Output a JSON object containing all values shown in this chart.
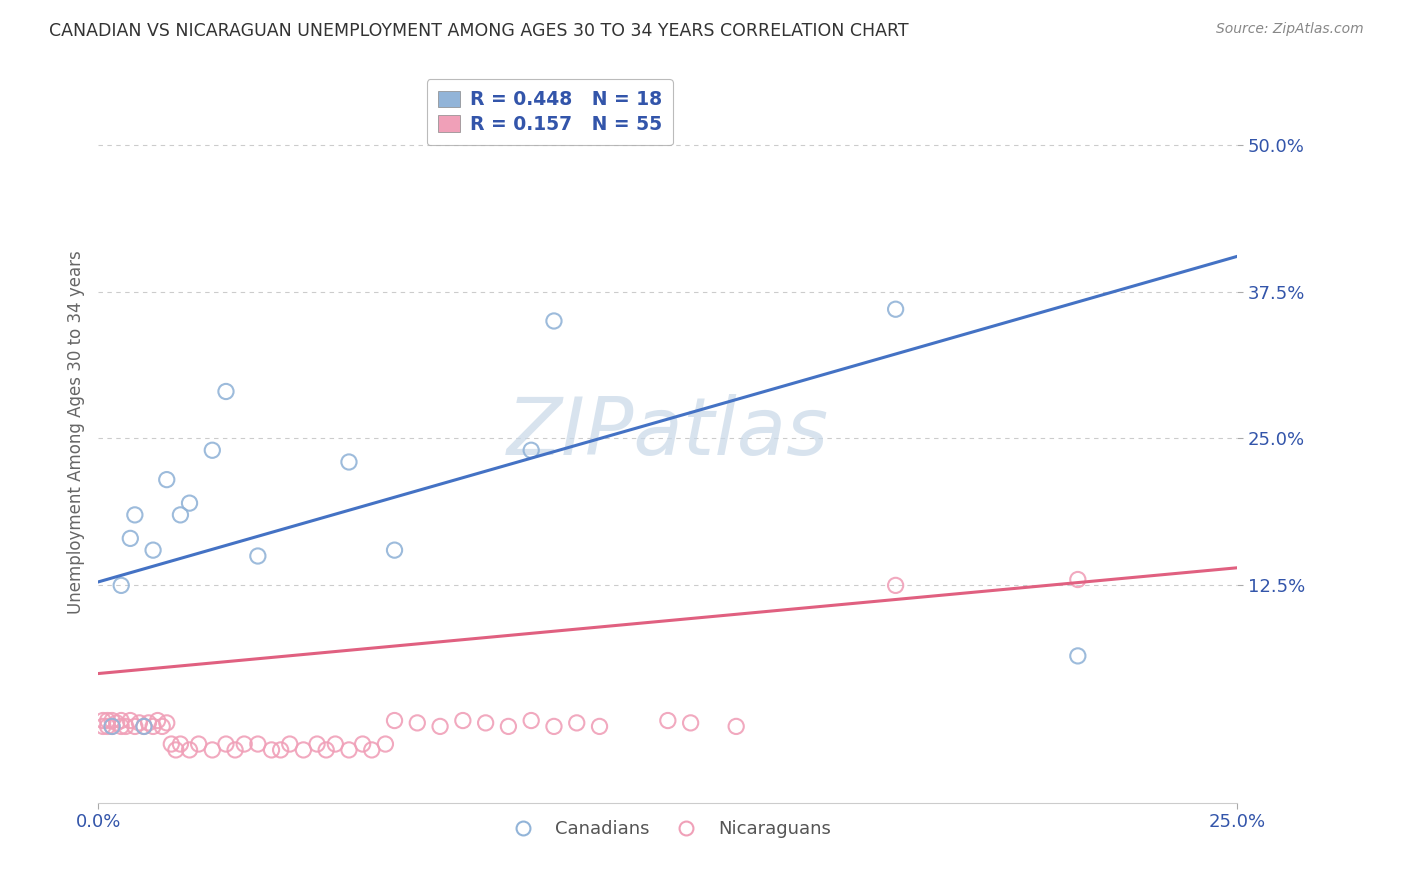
{
  "title": "CANADIAN VS NICARAGUAN UNEMPLOYMENT AMONG AGES 30 TO 34 YEARS CORRELATION CHART",
  "source": "Source: ZipAtlas.com",
  "ylabel": "Unemployment Among Ages 30 to 34 years",
  "ytick_labels": [
    "12.5%",
    "25.0%",
    "37.5%",
    "50.0%"
  ],
  "ytick_values": [
    0.125,
    0.25,
    0.375,
    0.5
  ],
  "xlim": [
    0.0,
    0.25
  ],
  "ylim": [
    -0.06,
    0.57
  ],
  "legend_r_canadian": "R = ",
  "legend_r_canadian_val": "0.448",
  "legend_n_canadian": "N = ",
  "legend_n_canadian_val": "18",
  "legend_r_nicaraguan": "R = ",
  "legend_r_nicaraguan_val": "0.157",
  "legend_n_nicaraguan": "N = ",
  "legend_n_nicaraguan_val": "55",
  "canadian_color": "#92b4d8",
  "nicaraguan_color": "#f0a0b8",
  "trendline_canadian_color": "#4472c4",
  "trendline_nicaraguan_color": "#e06080",
  "watermark_color": "#c8d8e8",
  "watermark_text": "ZIPatlas",
  "canadian_x": [
    0.003,
    0.005,
    0.007,
    0.008,
    0.01,
    0.012,
    0.015,
    0.018,
    0.02,
    0.025,
    0.028,
    0.035,
    0.055,
    0.065,
    0.095,
    0.1,
    0.175,
    0.215
  ],
  "canadian_y": [
    0.005,
    0.125,
    0.165,
    0.185,
    0.005,
    0.155,
    0.215,
    0.185,
    0.195,
    0.24,
    0.29,
    0.15,
    0.23,
    0.155,
    0.24,
    0.35,
    0.36,
    0.065
  ],
  "nicaraguan_x": [
    0.001,
    0.001,
    0.002,
    0.002,
    0.003,
    0.003,
    0.004,
    0.005,
    0.005,
    0.006,
    0.007,
    0.008,
    0.009,
    0.01,
    0.011,
    0.012,
    0.013,
    0.014,
    0.015,
    0.016,
    0.017,
    0.018,
    0.02,
    0.022,
    0.025,
    0.028,
    0.03,
    0.032,
    0.035,
    0.038,
    0.04,
    0.042,
    0.045,
    0.048,
    0.05,
    0.052,
    0.055,
    0.058,
    0.06,
    0.063,
    0.065,
    0.07,
    0.075,
    0.08,
    0.085,
    0.09,
    0.095,
    0.1,
    0.105,
    0.11,
    0.125,
    0.13,
    0.14,
    0.175,
    0.215
  ],
  "nicaraguan_y": [
    0.005,
    0.01,
    0.005,
    0.01,
    0.005,
    0.01,
    0.008,
    0.005,
    0.01,
    0.005,
    0.01,
    0.005,
    0.008,
    0.005,
    0.008,
    0.005,
    0.01,
    0.005,
    0.008,
    -0.01,
    -0.015,
    -0.01,
    -0.015,
    -0.01,
    -0.015,
    -0.01,
    -0.015,
    -0.01,
    -0.01,
    -0.015,
    -0.015,
    -0.01,
    -0.015,
    -0.01,
    -0.015,
    -0.01,
    -0.015,
    -0.01,
    -0.015,
    -0.01,
    0.01,
    0.008,
    0.005,
    0.01,
    0.008,
    0.005,
    0.01,
    0.005,
    0.008,
    0.005,
    0.01,
    0.008,
    0.005,
    0.125,
    0.13
  ],
  "trendline_canadian_x0": 0.0,
  "trendline_canadian_y0": 0.128,
  "trendline_canadian_x1": 0.25,
  "trendline_canadian_y1": 0.405,
  "trendline_nicaraguan_x0": 0.0,
  "trendline_nicaraguan_y0": 0.05,
  "trendline_nicaraguan_x1": 0.25,
  "trendline_nicaraguan_y1": 0.14
}
